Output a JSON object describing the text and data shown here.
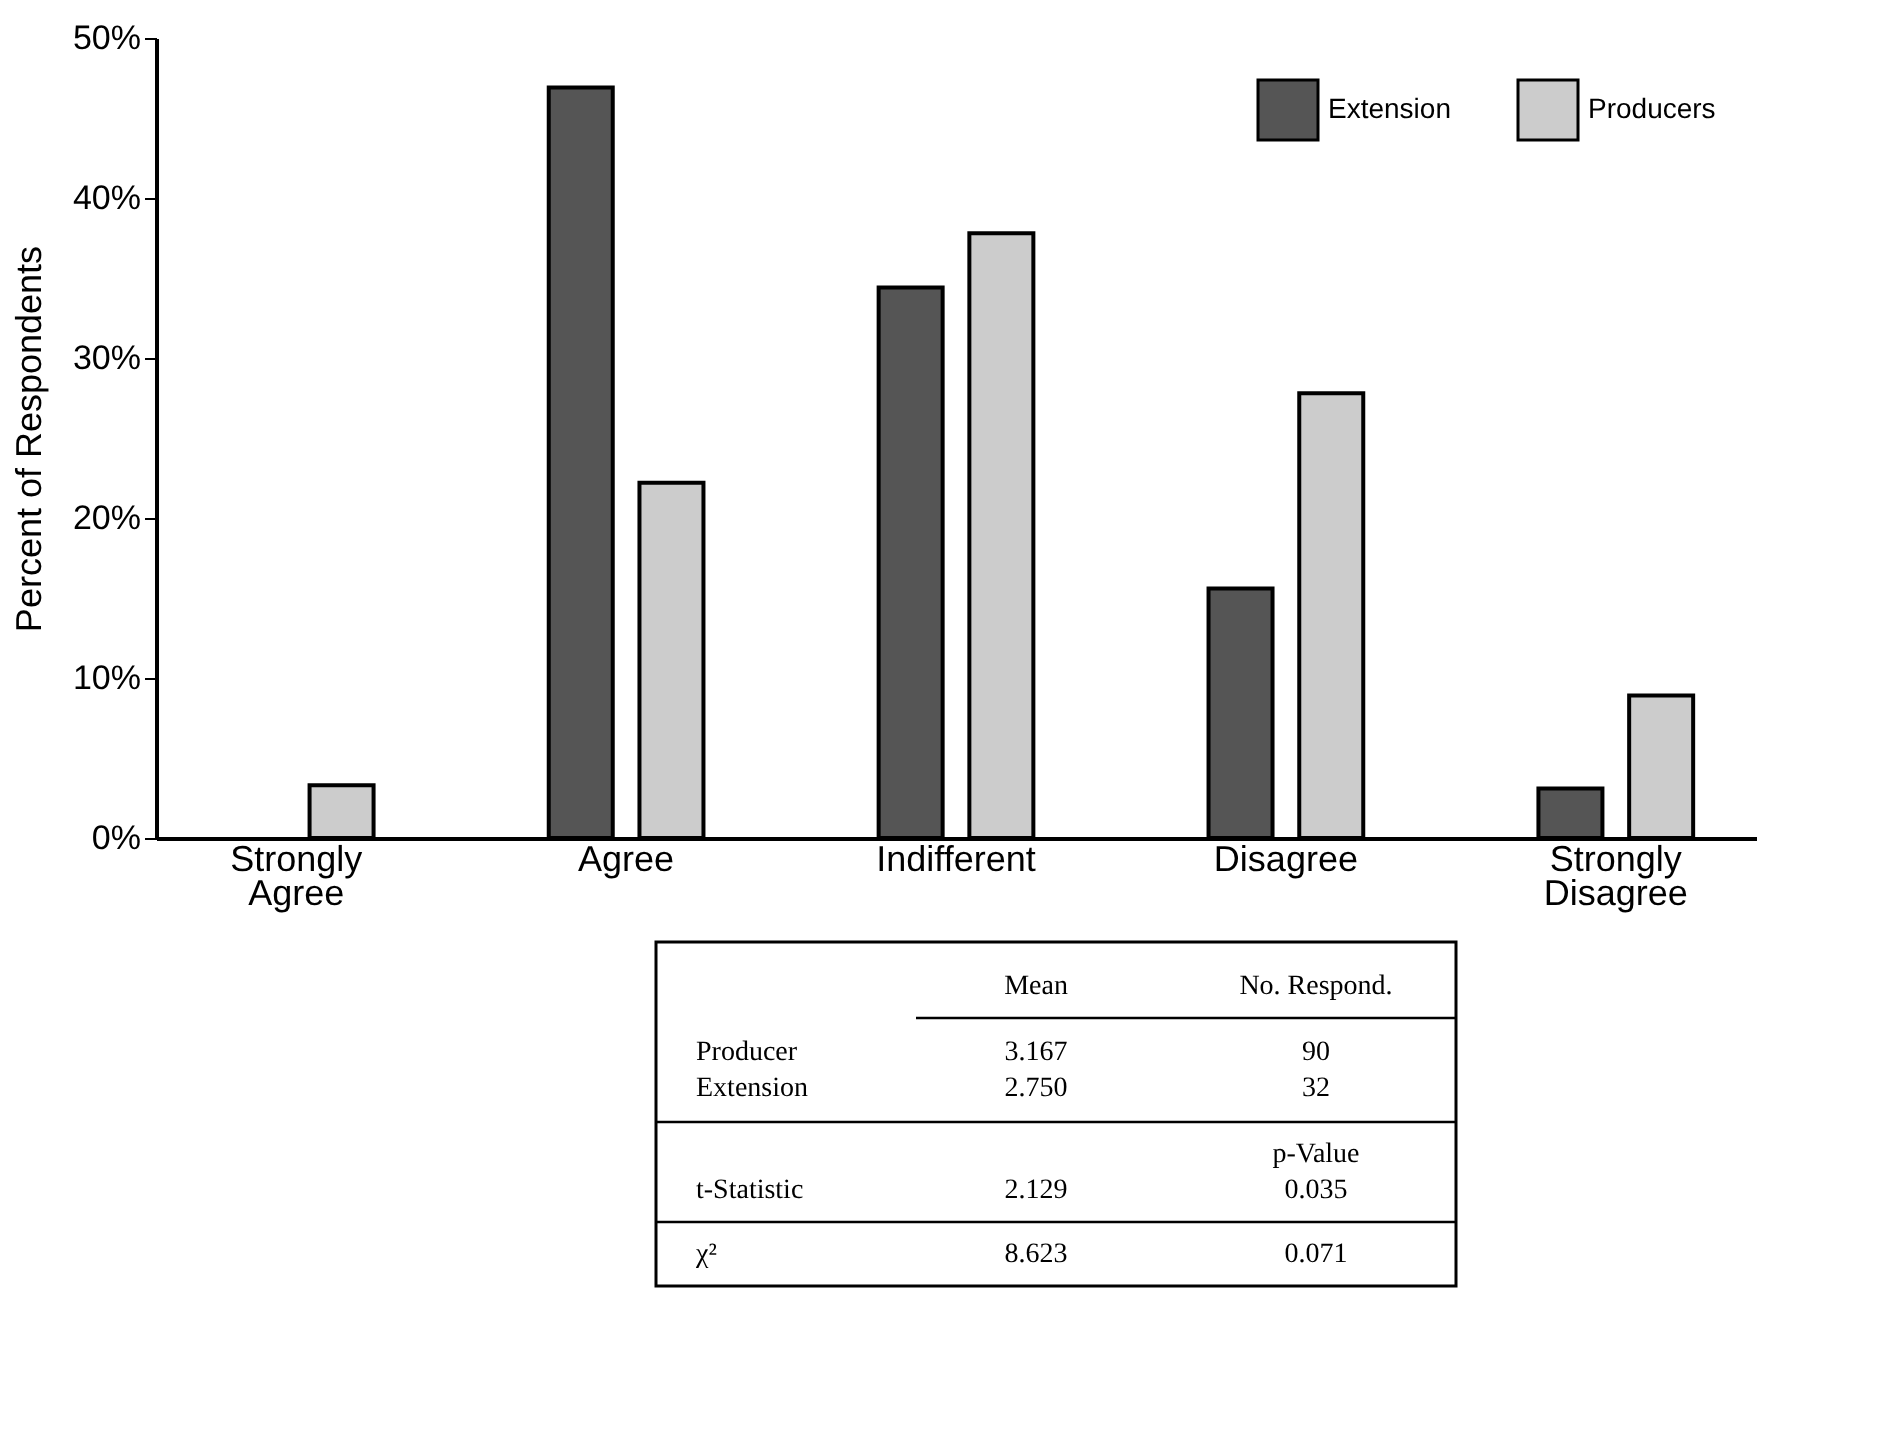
{
  "chart_data": {
    "type": "bar",
    "ylabel": "Percent of Respondents",
    "categories": [
      "Strongly Agree",
      "Agree",
      "Indifferent",
      "Disagree",
      "Strongly Disagree"
    ],
    "series": [
      {
        "name": "Extension",
        "color": "#555555",
        "values": [
          0,
          46.9,
          34.4,
          15.6,
          3.1
        ]
      },
      {
        "name": "Producers",
        "color": "#cccccc",
        "values": [
          3.3,
          22.2,
          37.8,
          27.8,
          8.9
        ]
      }
    ],
    "ylim": [
      0,
      50
    ],
    "yticks": [
      {
        "value": 0,
        "label": "0%"
      },
      {
        "value": 10,
        "label": "10%"
      },
      {
        "value": 20,
        "label": "20%"
      },
      {
        "value": 30,
        "label": "30%"
      },
      {
        "value": 40,
        "label": "40%"
      },
      {
        "value": 50,
        "label": "50%"
      }
    ],
    "grid": false,
    "legend": "top right",
    "annotations": [
      "Mean",
      "No. Respond.",
      "Producer",
      "3.167",
      "90",
      "Extension",
      "2.750",
      "32",
      "p-Value",
      "t-Statistic",
      "2.129",
      "0.035",
      "χ²",
      "8.623",
      "0.071"
    ]
  }
}
